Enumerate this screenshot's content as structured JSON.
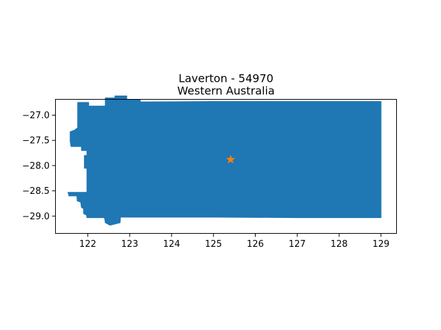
{
  "title": {
    "line1": "Laverton - 54970",
    "line2": "Western Australia"
  },
  "colors": {
    "region_fill": "#1f77b4",
    "marker": "#ff7f0e",
    "axis": "#000000",
    "background": "#ffffff"
  },
  "chart_data": {
    "type": "map",
    "title": "Laverton - 54970\nWestern Australia",
    "xlabel": "",
    "ylabel": "",
    "xlim": [
      121.22,
      129.38
    ],
    "ylim": [
      -29.35,
      -26.68
    ],
    "xticks": [
      122,
      123,
      124,
      125,
      126,
      127,
      128,
      129
    ],
    "xtick_labels": [
      "122",
      "123",
      "124",
      "125",
      "126",
      "127",
      "128",
      "129"
    ],
    "yticks": [
      -27.0,
      -27.5,
      -28.0,
      -28.5,
      -29.0
    ],
    "ytick_labels": [
      "−27.0",
      "−27.5",
      "−28.0",
      "−28.5",
      "−29.0"
    ],
    "grid": false,
    "region": {
      "name": "Laverton - 54970",
      "lon_range": [
        121.53,
        129.0
      ],
      "lat_range": [
        -29.2,
        -26.65
      ],
      "outline": [
        [
          121.76,
          -26.75
        ],
        [
          122.02,
          -26.75
        ],
        [
          122.02,
          -26.82
        ],
        [
          122.42,
          -26.82
        ],
        [
          122.42,
          -26.66
        ],
        [
          122.65,
          -26.66
        ],
        [
          122.65,
          -26.62
        ],
        [
          122.93,
          -26.62
        ],
        [
          122.93,
          -26.69
        ],
        [
          123.25,
          -26.69
        ],
        [
          123.25,
          -26.74
        ],
        [
          125.0,
          -26.73
        ],
        [
          127.0,
          -26.73
        ],
        [
          129.0,
          -26.73
        ],
        [
          129.0,
          -27.6
        ],
        [
          129.0,
          -28.5
        ],
        [
          129.0,
          -29.03
        ],
        [
          127.0,
          -29.03
        ],
        [
          125.0,
          -29.02
        ],
        [
          123.5,
          -29.02
        ],
        [
          122.9,
          -29.02
        ],
        [
          122.78,
          -29.02
        ],
        [
          122.77,
          -29.13
        ],
        [
          122.53,
          -29.18
        ],
        [
          122.42,
          -29.13
        ],
        [
          122.4,
          -29.03
        ],
        [
          121.98,
          -29.03
        ],
        [
          121.97,
          -28.98
        ],
        [
          121.9,
          -28.95
        ],
        [
          121.9,
          -28.85
        ],
        [
          121.85,
          -28.83
        ],
        [
          121.83,
          -28.72
        ],
        [
          121.75,
          -28.7
        ],
        [
          121.74,
          -28.6
        ],
        [
          121.55,
          -28.6
        ],
        [
          121.53,
          -28.53
        ],
        [
          121.8,
          -28.53
        ],
        [
          121.98,
          -28.53
        ],
        [
          121.98,
          -28.05
        ],
        [
          121.92,
          -28.05
        ],
        [
          121.92,
          -27.8
        ],
        [
          121.98,
          -27.8
        ],
        [
          121.98,
          -27.7
        ],
        [
          121.85,
          -27.7
        ],
        [
          121.85,
          -27.62
        ],
        [
          121.75,
          -27.62
        ],
        [
          121.6,
          -27.62
        ],
        [
          121.58,
          -27.52
        ],
        [
          121.58,
          -27.33
        ],
        [
          121.68,
          -27.3
        ],
        [
          121.76,
          -27.25
        ]
      ]
    },
    "marker": {
      "label": "",
      "shape": "star",
      "lon": 125.41,
      "lat": -27.88
    }
  }
}
